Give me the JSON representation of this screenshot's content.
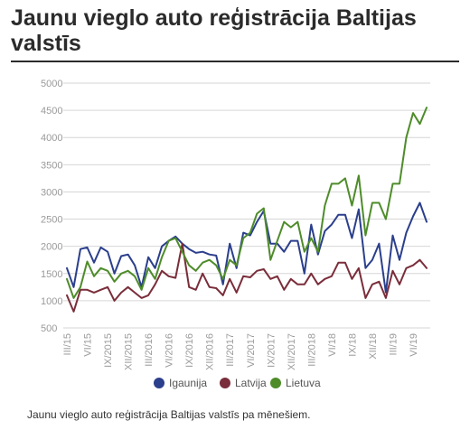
{
  "title": "Jaunu vieglo auto reģistrācija Baltijas valstīs",
  "caption": "Jaunu vieglo auto reģistrācija Baltijas valstīs pa mēnešiem.",
  "chart_data": {
    "type": "line",
    "title": "",
    "xlabel": "",
    "ylabel": "",
    "ylim": [
      500,
      5000
    ],
    "yticks": [
      500,
      1000,
      1500,
      2000,
      2500,
      3000,
      3500,
      4000,
      4500,
      5000
    ],
    "grid": true,
    "legend_position": "bottom",
    "x_tick_labels": [
      "III/15",
      "VI/15",
      "IX/2015",
      "XII/2015",
      "III/2016",
      "VI/2016",
      "IX/2016",
      "XII/2016",
      "III/2017",
      "VI/2017",
      "IX/2017",
      "XII/2017",
      "III/2018",
      "VI/18",
      "IX/18",
      "XII/18",
      "III/19",
      "VI/19"
    ],
    "x_tick_indices": [
      0,
      3,
      6,
      9,
      12,
      15,
      18,
      21,
      24,
      27,
      30,
      33,
      36,
      39,
      42,
      45,
      48,
      51
    ],
    "series": [
      {
        "name": "Igaunija",
        "color": "#2b3f8c",
        "values": [
          1600,
          1250,
          1950,
          1980,
          1700,
          1980,
          1900,
          1500,
          1820,
          1850,
          1650,
          1250,
          1800,
          1600,
          2000,
          2100,
          2180,
          2050,
          1950,
          1880,
          1900,
          1850,
          1830,
          1300,
          2050,
          1600,
          2250,
          2200,
          2450,
          2650,
          2050,
          2050,
          1900,
          2100,
          2100,
          1500,
          2400,
          1850,
          2280,
          2400,
          2580,
          2580,
          2150,
          2680,
          1600,
          1750,
          2050,
          1150,
          2200,
          1750,
          2250,
          2550,
          2800,
          2450
        ]
      },
      {
        "name": "Latvija",
        "color": "#7a2d3a",
        "values": [
          1100,
          800,
          1200,
          1200,
          1150,
          1200,
          1250,
          1000,
          1150,
          1250,
          1150,
          1050,
          1100,
          1300,
          1550,
          1450,
          1420,
          2050,
          1250,
          1200,
          1500,
          1250,
          1230,
          1100,
          1400,
          1150,
          1450,
          1430,
          1550,
          1580,
          1400,
          1450,
          1200,
          1400,
          1300,
          1300,
          1500,
          1300,
          1400,
          1450,
          1700,
          1700,
          1400,
          1600,
          1050,
          1300,
          1350,
          1050,
          1550,
          1300,
          1600,
          1650,
          1750,
          1600
        ]
      },
      {
        "name": "Lietuva",
        "color": "#4e8c2a",
        "values": [
          1400,
          1050,
          1250,
          1720,
          1450,
          1600,
          1550,
          1350,
          1500,
          1550,
          1450,
          1200,
          1600,
          1400,
          1800,
          2100,
          2150,
          1900,
          1650,
          1550,
          1700,
          1750,
          1650,
          1400,
          1750,
          1650,
          2150,
          2250,
          2600,
          2700,
          1750,
          2100,
          2450,
          2350,
          2450,
          1900,
          2150,
          1900,
          2750,
          3150,
          3150,
          3250,
          2750,
          3300,
          2200,
          2800,
          2800,
          2500,
          3150,
          3150,
          4000,
          4450,
          4250,
          4550
        ]
      }
    ]
  }
}
